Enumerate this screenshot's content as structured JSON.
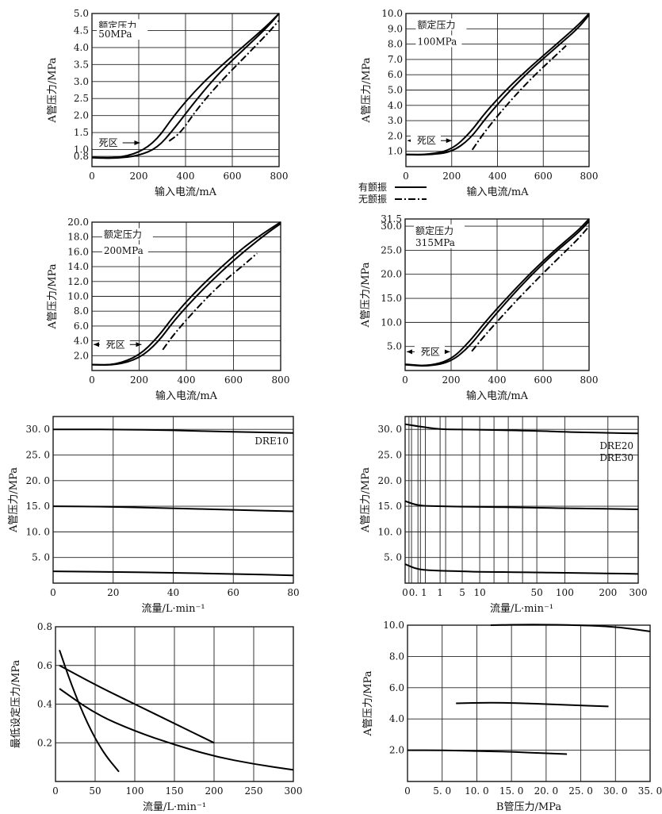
{
  "chart_data": [
    {
      "id": "c1",
      "type": "line",
      "xlabel": "输入电流/mA",
      "ylabel": "A管压力/MPa",
      "xlim": [
        0,
        800
      ],
      "ylim": [
        0.5,
        5.0
      ],
      "xticks": [
        0,
        200,
        400,
        600,
        800
      ],
      "xtick_labels": [
        "0",
        "200",
        "400",
        "600",
        "800"
      ],
      "yticks": [
        0.8,
        1.0,
        1.5,
        2.0,
        2.5,
        3.0,
        3.5,
        4.0,
        4.5,
        5.0
      ],
      "ytick_labels": [
        "0.8",
        "1.0",
        "1.5",
        "2.0",
        "2.5",
        "3.0",
        "3.5",
        "4.0",
        "4.5",
        "5.0"
      ],
      "annotations": [
        "额定压力",
        "50MPa",
        "死区"
      ],
      "grid": true,
      "series": [
        {
          "style": "solid",
          "x": [
            0,
            100,
            200,
            280,
            350,
            450,
            550,
            650,
            750,
            800
          ],
          "y": [
            0.77,
            0.75,
            0.9,
            1.3,
            2.0,
            2.8,
            3.45,
            4.05,
            4.65,
            5.0
          ]
        },
        {
          "style": "solid",
          "x": [
            0,
            100,
            200,
            280,
            350,
            450,
            550,
            650,
            750,
            800
          ],
          "y": [
            0.76,
            0.74,
            0.82,
            1.05,
            1.6,
            2.5,
            3.3,
            3.95,
            4.6,
            5.0
          ]
        },
        {
          "style": "dashdot",
          "x": [
            330,
            380,
            450,
            550,
            650,
            750,
            800
          ],
          "y": [
            1.25,
            1.5,
            2.2,
            3.0,
            3.7,
            4.4,
            4.8
          ]
        }
      ]
    },
    {
      "id": "c2",
      "type": "line",
      "xlabel": "输入电流/mA",
      "ylabel": "A管压力/MPa",
      "xlim": [
        0,
        800
      ],
      "ylim": [
        0,
        10.0
      ],
      "xticks": [
        0,
        200,
        400,
        600,
        800
      ],
      "xtick_labels": [
        "0",
        "200",
        "400",
        "600",
        "800"
      ],
      "yticks": [
        1.0,
        2.0,
        3.0,
        4.0,
        5.0,
        6.0,
        7.0,
        8.0,
        9.0,
        10.0
      ],
      "ytick_labels": [
        "1.0",
        "2.0",
        "3.0",
        "4.0",
        "5.0",
        "6.0",
        "7.0",
        "8.0",
        "9.0",
        "10.0"
      ],
      "annotations": [
        "额定压力",
        "100MPa",
        "死区"
      ],
      "grid": true,
      "legend": [
        {
          "label": "有颤振",
          "style": "solid"
        },
        {
          "label": "无颤振",
          "style": "dashdot"
        }
      ],
      "series": [
        {
          "style": "solid",
          "x": [
            0,
            100,
            200,
            280,
            350,
            450,
            550,
            650,
            750,
            800
          ],
          "y": [
            0.8,
            0.78,
            1.1,
            2.2,
            3.6,
            5.2,
            6.6,
            7.9,
            9.2,
            10.0
          ]
        },
        {
          "style": "solid",
          "x": [
            0,
            100,
            200,
            280,
            350,
            450,
            550,
            650,
            750,
            800
          ],
          "y": [
            0.78,
            0.76,
            0.95,
            1.8,
            3.2,
            4.9,
            6.4,
            7.7,
            9.0,
            9.9
          ]
        },
        {
          "style": "dashdot",
          "x": [
            290,
            350,
            450,
            550,
            650,
            700
          ],
          "y": [
            1.1,
            2.4,
            4.2,
            5.8,
            7.2,
            7.9
          ]
        }
      ]
    },
    {
      "id": "c3",
      "type": "line",
      "xlabel": "输入电流/mA",
      "ylabel": "A管压力/MPa",
      "xlim": [
        0,
        800
      ],
      "ylim": [
        0,
        20.0
      ],
      "xticks": [
        0,
        200,
        400,
        600,
        800
      ],
      "xtick_labels": [
        "0",
        "200",
        "400",
        "600",
        "800"
      ],
      "yticks": [
        2.0,
        4.0,
        6.0,
        8.0,
        10.0,
        12.0,
        14.0,
        16.0,
        18.0,
        20.0
      ],
      "ytick_labels": [
        "2.0",
        "4.0",
        "6.0",
        "8.0",
        "10.0",
        "12.0",
        "14.0",
        "16.0",
        "18.0",
        "20.0"
      ],
      "annotations": [
        "额定压力",
        "200MPa",
        "死区"
      ],
      "grid": true,
      "series": [
        {
          "style": "solid",
          "x": [
            0,
            100,
            200,
            280,
            350,
            450,
            550,
            650,
            750,
            800
          ],
          "y": [
            0.8,
            0.75,
            2.0,
            4.5,
            7.5,
            11.0,
            14.0,
            16.8,
            19.0,
            20.0
          ]
        },
        {
          "style": "solid",
          "x": [
            0,
            100,
            200,
            280,
            350,
            450,
            550,
            650,
            750,
            800
          ],
          "y": [
            0.78,
            0.72,
            1.6,
            3.8,
            6.8,
            10.3,
            13.4,
            16.2,
            18.7,
            19.8
          ]
        },
        {
          "style": "dashdot",
          "x": [
            300,
            350,
            450,
            550,
            650,
            700
          ],
          "y": [
            2.8,
            5.0,
            8.6,
            11.8,
            14.4,
            15.8
          ]
        }
      ]
    },
    {
      "id": "c4",
      "type": "line",
      "xlabel": "输入电流/mA",
      "ylabel": "A管压力/MPa",
      "xlim": [
        0,
        800
      ],
      "ylim": [
        0,
        31.5
      ],
      "xticks": [
        0,
        200,
        400,
        600,
        800
      ],
      "xtick_labels": [
        "0",
        "200",
        "400",
        "600",
        "800"
      ],
      "yticks": [
        5.0,
        10.0,
        15.0,
        20.0,
        25.0,
        30.0,
        31.5
      ],
      "ytick_labels": [
        "5.0",
        "10.0",
        "15.0",
        "20.0",
        "25.0",
        "30.0",
        "31.5"
      ],
      "annotations": [
        "额定压力",
        "315MPa",
        "死区"
      ],
      "grid": true,
      "series": [
        {
          "style": "solid",
          "x": [
            0,
            100,
            200,
            280,
            350,
            450,
            550,
            650,
            750,
            800
          ],
          "y": [
            1.3,
            0.9,
            2.2,
            6.0,
            10.2,
            15.5,
            20.5,
            25.0,
            29.0,
            31.5
          ]
        },
        {
          "style": "solid",
          "x": [
            0,
            100,
            200,
            280,
            350,
            450,
            550,
            650,
            750,
            800
          ],
          "y": [
            1.2,
            0.85,
            1.8,
            5.0,
            9.2,
            14.8,
            19.9,
            24.5,
            28.5,
            31.0
          ]
        },
        {
          "style": "dashdot",
          "x": [
            290,
            350,
            450,
            550,
            650,
            750,
            800
          ],
          "y": [
            4.0,
            7.5,
            12.8,
            17.8,
            22.6,
            27.2,
            30.0
          ]
        }
      ]
    },
    {
      "id": "c5",
      "type": "line",
      "xlabel": "流量/L·min⁻¹",
      "ylabel": "A管压力/MPa",
      "xlim": [
        0,
        80
      ],
      "ylim": [
        0,
        32.5
      ],
      "xticks": [
        0,
        20,
        40,
        60,
        80
      ],
      "xtick_labels": [
        "0",
        "20",
        "40",
        "60",
        "80"
      ],
      "yticks": [
        5.0,
        10.0,
        15.0,
        20.0,
        25.0,
        30.0
      ],
      "ytick_labels": [
        "5. 0",
        "10. 0",
        "15. 0",
        "20. 0",
        "25. 0",
        "30. 0"
      ],
      "annotations": [
        "DRE10"
      ],
      "grid": true,
      "series": [
        {
          "style": "solid",
          "x": [
            0,
            20,
            40,
            60,
            80
          ],
          "y": [
            30.0,
            30.0,
            29.8,
            29.5,
            29.3
          ]
        },
        {
          "style": "solid",
          "x": [
            0,
            20,
            40,
            60,
            80
          ],
          "y": [
            15.0,
            14.9,
            14.6,
            14.3,
            14.0
          ]
        },
        {
          "style": "solid",
          "x": [
            0,
            20,
            40,
            60,
            80
          ],
          "y": [
            2.3,
            2.2,
            2.0,
            1.8,
            1.5
          ]
        }
      ]
    },
    {
      "id": "c6",
      "type": "line",
      "xlabel": "流量/L·min⁻¹",
      "ylabel": "A管压力/MPa",
      "xlim": [
        0,
        300
      ],
      "ylim": [
        0,
        32.5
      ],
      "xticks": [
        0,
        0.1,
        1,
        5,
        10,
        50,
        100,
        200,
        300
      ],
      "xtick_labels": [
        "0",
        "0. 1",
        "1",
        "5",
        "10",
        "50",
        "100",
        "200",
        "300"
      ],
      "yticks": [
        5.0,
        10.0,
        15.0,
        20.0,
        25.0,
        30.0
      ],
      "ytick_labels": [
        "5. 0",
        "10. 0",
        "15. 0",
        "20. 0",
        "25. 0",
        "30. 0"
      ],
      "annotations": [
        "DRE20",
        "DRE30"
      ],
      "grid": true,
      "series": [
        {
          "style": "solid",
          "x": [
            0,
            0.1,
            1,
            5,
            10,
            50,
            100,
            200,
            300
          ],
          "y": [
            31.0,
            30.6,
            30.0,
            30.0,
            29.9,
            29.7,
            29.5,
            29.3,
            29.2
          ]
        },
        {
          "style": "solid",
          "x": [
            0,
            0.1,
            1,
            5,
            10,
            50,
            100,
            200,
            300
          ],
          "y": [
            16.0,
            15.1,
            15.0,
            14.9,
            14.9,
            14.7,
            14.6,
            14.5,
            14.4
          ]
        },
        {
          "style": "solid",
          "x": [
            0,
            0.1,
            1,
            5,
            10,
            50,
            100,
            200,
            300
          ],
          "y": [
            3.7,
            2.6,
            2.4,
            2.3,
            2.2,
            2.1,
            2.0,
            1.9,
            1.8
          ]
        }
      ]
    },
    {
      "id": "c7",
      "type": "line",
      "xlabel": "流量/L·min⁻¹",
      "ylabel": "最低设定压力/MPa",
      "xlim": [
        0,
        300
      ],
      "ylim": [
        0,
        0.8
      ],
      "xticks": [
        0,
        50,
        100,
        150,
        200,
        250,
        300
      ],
      "xtick_labels": [
        "0",
        "50",
        "100",
        "150",
        "200",
        "250",
        "300"
      ],
      "yticks": [
        0.2,
        0.4,
        0.6,
        0.8
      ],
      "ytick_labels": [
        "0.2",
        "0.4",
        "0.6",
        "0.8"
      ],
      "grid": true,
      "series": [
        {
          "style": "solid",
          "x": [
            5,
            20,
            40,
            60,
            80
          ],
          "y": [
            0.68,
            0.5,
            0.3,
            0.15,
            0.05
          ]
        },
        {
          "style": "solid",
          "x": [
            5,
            50,
            100,
            150,
            200
          ],
          "y": [
            0.6,
            0.5,
            0.4,
            0.3,
            0.2
          ]
        },
        {
          "style": "solid",
          "x": [
            5,
            50,
            100,
            150,
            200,
            250,
            300
          ],
          "y": [
            0.48,
            0.35,
            0.26,
            0.19,
            0.13,
            0.09,
            0.06
          ]
        }
      ]
    },
    {
      "id": "c8",
      "type": "line",
      "xlabel": "B管压力/MPa",
      "ylabel": "A管压力/MPa",
      "xlim": [
        0,
        35.0
      ],
      "ylim": [
        0,
        10.0
      ],
      "xticks": [
        0,
        5.0,
        10.0,
        15.0,
        20.0,
        25.0,
        30.0,
        35.0
      ],
      "xtick_labels": [
        "0",
        "5. 0",
        "10. 0",
        "15. 0",
        "20. 0",
        "25. 0",
        "30. 0",
        "35. 0"
      ],
      "yticks": [
        2.0,
        4.0,
        6.0,
        8.0,
        10.0
      ],
      "ytick_labels": [
        "2.0",
        "4.0",
        "6.0",
        "8.0",
        "10.0"
      ],
      "grid": true,
      "series": [
        {
          "style": "solid",
          "x": [
            12.0,
            18.0,
            25.0,
            30.0,
            35.0
          ],
          "y": [
            10.0,
            10.05,
            10.0,
            9.9,
            9.6
          ]
        },
        {
          "style": "solid",
          "x": [
            7.0,
            12.0,
            17.0,
            23.0,
            29.0
          ],
          "y": [
            5.0,
            5.05,
            5.0,
            4.9,
            4.8
          ]
        },
        {
          "style": "solid",
          "x": [
            0,
            5.0,
            10.0,
            15.0,
            20.0,
            23.0
          ],
          "y": [
            2.0,
            2.0,
            1.95,
            1.9,
            1.8,
            1.75
          ]
        }
      ]
    }
  ]
}
